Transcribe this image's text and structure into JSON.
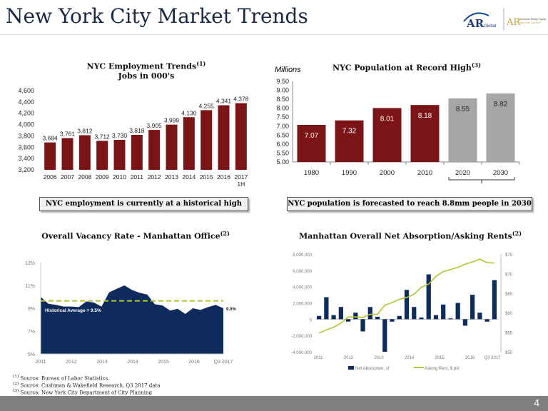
{
  "header": {
    "title": "New York City Market Trends",
    "logo_text": "AR Global",
    "logo2_text": "American Realty Capital New York City REIT"
  },
  "chart_data": [
    {
      "type": "bar",
      "title": "NYC Employment Trends",
      "title_sup": "(1)",
      "subtitle": "Jobs in 000's",
      "categories": [
        "2006",
        "2007",
        "2008",
        "2009",
        "2010",
        "2011",
        "2012",
        "2013",
        "2014",
        "2015",
        "2016",
        "2017 1H"
      ],
      "values": [
        3684,
        3761,
        3812,
        3712,
        3730,
        3818,
        3905,
        3999,
        4130,
        4255,
        4341,
        4378
      ],
      "labels": [
        "3,684",
        "3,761",
        "3,812",
        "3,712",
        "3,730",
        "3,818",
        "3,905",
        "3,999",
        "4,130",
        "4,255",
        "4,341",
        "4,378"
      ],
      "yticks": [
        "3,200",
        "3,400",
        "3,600",
        "3,800",
        "4,000",
        "4,200",
        "4,400",
        "4,600"
      ],
      "ylim": [
        3200,
        4600
      ],
      "color": "#7b1416",
      "callout": "NYC employment is currently at a historical high"
    },
    {
      "type": "bar",
      "title": "NYC Population at Record High",
      "title_sup": "(3)",
      "ylabel": "Millions",
      "categories": [
        "1980",
        "1990",
        "2000",
        "2010",
        "2020",
        "2030"
      ],
      "values": [
        7.07,
        7.32,
        8.01,
        8.18,
        8.55,
        8.82
      ],
      "labels": [
        "7.07",
        "7.32",
        "8.01",
        "8.18",
        "8.55",
        "8.82"
      ],
      "forecast": [
        false,
        false,
        false,
        false,
        true,
        true
      ],
      "yticks": [
        "5.00",
        "5.50",
        "6.00",
        "6.50",
        "7.00",
        "7.50",
        "8.00",
        "8.50",
        "9.00",
        "9.50"
      ],
      "ylim": [
        5,
        9.5
      ],
      "color": "#7b1416",
      "forecast_color": "#a6a6a6",
      "callout": "NYC population is forecasted to reach 8.8mm people in 2030"
    },
    {
      "type": "area",
      "title": "Overall Vacancy Rate - Manhattan Office",
      "title_sup": "(2)",
      "values": [
        10.0,
        9.4,
        9.3,
        9.15,
        9.15,
        9.1,
        9.6,
        9.5,
        9.15,
        10.4,
        10.7,
        11.0,
        10.6,
        10.35,
        10.2,
        9.35,
        9.25,
        8.8,
        8.95,
        8.5,
        9.0,
        8.85,
        9.1,
        9.3,
        9.0
      ],
      "average": 9.5,
      "average_label": "Historical Average = 9.5%",
      "end_label": "9.0%",
      "yticks": [
        "5%",
        "7%",
        "9%",
        "11%",
        "13%"
      ],
      "ylim": [
        5,
        13
      ],
      "xticks": [
        "2011",
        "2012",
        "2013",
        "2014",
        "2015",
        "2016",
        "Q3 2017"
      ],
      "color": "#0e2b5c",
      "avg_color": "#b5c334"
    },
    {
      "type": "bar+line",
      "title": "Manhattan Overall Net Absorption/Asking Rents",
      "title_sup": "(2)",
      "series": [
        {
          "name": "Net Absorption, sf",
          "values": [
            400000,
            2700000,
            500000,
            1500000,
            -300000,
            800000,
            -1500000,
            1500000,
            300000,
            -4000000,
            -300000,
            400000,
            3600000,
            1500000,
            200000,
            5500000,
            500000,
            1800000,
            100000,
            2000000,
            -800000,
            3000000,
            800000,
            -300000,
            4800000
          ]
        },
        {
          "name": "Asking Rent, $ psf",
          "values": [
            54.8,
            55.6,
            56.3,
            57.3,
            58.9,
            58.9,
            58.8,
            59.6,
            59.6,
            61.9,
            62.6,
            63.4,
            63.9,
            64.7,
            66.5,
            67.3,
            69.3,
            70.5,
            71.0,
            71.6,
            72.4,
            73.0,
            73.7,
            72.8,
            72.7
          ]
        }
      ],
      "yticks_left": [
        "-4,000,000",
        "-2,000,000",
        "0",
        "2,000,000",
        "4,000,000",
        "6,000,000",
        "8,000,000"
      ],
      "ylim_left": [
        -4000000,
        8000000
      ],
      "yticks_right": [
        "$50",
        "$55",
        "$60",
        "$65",
        "$70",
        "$75"
      ],
      "ylim_right": [
        50,
        75
      ],
      "xticks": [
        "2011",
        "2012",
        "2013",
        "2014",
        "2015",
        "2016",
        "Q3 2017"
      ],
      "bar_color": "#0e2b5c",
      "line_color": "#b5c334"
    }
  ],
  "sources": [
    {
      "sup": "(1)",
      "text": "Source:  Bureau of Labor Statistics."
    },
    {
      "sup": "(2)",
      "text": "Source:  Cushman  & Wakefield  Research, Q3 2017 data"
    },
    {
      "sup": "(3)",
      "text": "Source:  New York City Department  of City Planning"
    }
  ],
  "footer": {
    "page": "4"
  }
}
